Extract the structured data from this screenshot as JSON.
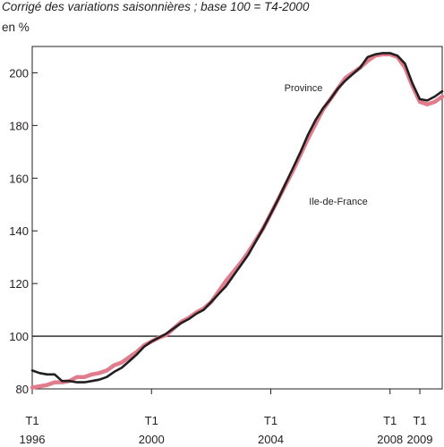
{
  "chart_data": {
    "type": "line",
    "title": "",
    "subtitle": "Corrigé des variations saisonnières ; base 100 = T4-2000",
    "ylabel": "en %",
    "xlabel": "",
    "ylim": [
      80,
      210
    ],
    "yticks": [
      80,
      100,
      120,
      140,
      160,
      180,
      200
    ],
    "reference_line": 100,
    "x_ticks": [
      {
        "line1": "T1",
        "line2": "1996",
        "x": 1996.0
      },
      {
        "line1": "T1",
        "line2": "2000",
        "x": 2000.0
      },
      {
        "line1": "T1",
        "line2": "2004",
        "x": 2004.0
      },
      {
        "line1": "T1",
        "line2": "2008",
        "x": 2008.0
      },
      {
        "line1": "T1",
        "line2": "2009",
        "x": 2009.0
      }
    ],
    "xlim": [
      1996.0,
      2009.75
    ],
    "grid": false,
    "series": [
      {
        "name": "Province",
        "color": "#e07c8b",
        "x": [
          1996.0,
          1996.25,
          1996.5,
          1996.75,
          1997.0,
          1997.25,
          1997.5,
          1997.75,
          1998.0,
          1998.25,
          1998.5,
          1998.75,
          1999.0,
          1999.25,
          1999.5,
          1999.75,
          2000.0,
          2000.25,
          2000.5,
          2000.75,
          2001.0,
          2001.25,
          2001.5,
          2001.75,
          2002.0,
          2002.25,
          2002.5,
          2002.75,
          2003.0,
          2003.25,
          2003.5,
          2003.75,
          2004.0,
          2004.25,
          2004.5,
          2004.75,
          2005.0,
          2005.25,
          2005.5,
          2005.75,
          2006.0,
          2006.25,
          2006.5,
          2006.75,
          2007.0,
          2007.25,
          2007.5,
          2007.75,
          2008.0,
          2008.25,
          2008.5,
          2008.75,
          2009.0,
          2009.25,
          2009.5,
          2009.75
        ],
        "values": [
          80.5,
          81,
          81.5,
          82.5,
          82.5,
          83,
          84.5,
          84.5,
          85.5,
          86,
          87,
          89,
          90,
          92,
          94,
          96.5,
          98,
          99.5,
          100.5,
          103,
          105.5,
          107,
          109,
          110.5,
          113,
          117,
          121,
          124.5,
          128,
          132,
          136.5,
          141,
          146.5,
          152,
          157.5,
          163,
          169,
          175,
          180.5,
          186,
          190,
          194,
          198,
          200,
          202,
          204.5,
          206.5,
          207,
          207,
          206,
          202,
          195,
          189,
          188,
          189,
          191
        ]
      },
      {
        "name": "Ile-de-France",
        "color": "#231f20",
        "x": [
          1996.0,
          1996.25,
          1996.5,
          1996.75,
          1997.0,
          1997.25,
          1997.5,
          1997.75,
          1998.0,
          1998.25,
          1998.5,
          1998.75,
          1999.0,
          1999.25,
          1999.5,
          1999.75,
          2000.0,
          2000.25,
          2000.5,
          2000.75,
          2001.0,
          2001.25,
          2001.5,
          2001.75,
          2002.0,
          2002.25,
          2002.5,
          2002.75,
          2003.0,
          2003.25,
          2003.5,
          2003.75,
          2004.0,
          2004.25,
          2004.5,
          2004.75,
          2005.0,
          2005.25,
          2005.5,
          2005.75,
          2006.0,
          2006.25,
          2006.5,
          2006.75,
          2007.0,
          2007.25,
          2007.5,
          2007.75,
          2008.0,
          2008.25,
          2008.5,
          2008.75,
          2009.0,
          2009.25,
          2009.5,
          2009.75
        ],
        "values": [
          87,
          86,
          85.5,
          85.5,
          83,
          83,
          82.5,
          82.5,
          83,
          83.5,
          84.5,
          86.5,
          88,
          90.5,
          93,
          96,
          98,
          99.5,
          101,
          103,
          105,
          106.5,
          108.5,
          110,
          113,
          116,
          119,
          123,
          127,
          131,
          136,
          141,
          146.5,
          152,
          158,
          164,
          170,
          176.5,
          182,
          186.5,
          190,
          194,
          197,
          199.5,
          202,
          206,
          207,
          207.5,
          207.5,
          206.5,
          203.5,
          196,
          190,
          189.5,
          191,
          193
        ]
      }
    ],
    "annotations": [
      {
        "text": "Province",
        "series": "Province"
      },
      {
        "text": "Ile-de-France",
        "series": "Ile-de-France"
      }
    ]
  }
}
